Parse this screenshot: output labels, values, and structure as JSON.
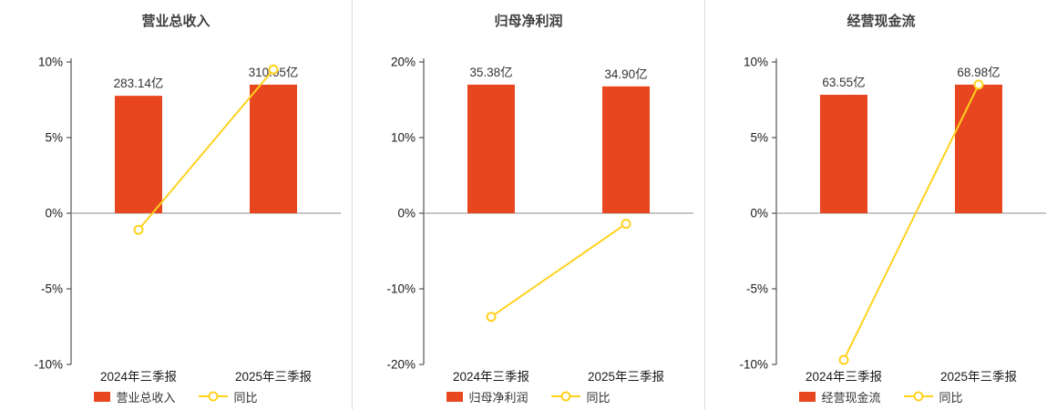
{
  "page": {
    "background": "#ffffff",
    "divider_color": "#dddddd"
  },
  "chart_data": [
    {
      "type": "bar",
      "combo": "bar+line",
      "title": "营业总收入",
      "categories": [
        "2024年三季报",
        "2025年三季报"
      ],
      "bar_series": {
        "name": "营业总收入",
        "unit": "亿",
        "values": [
          283.14,
          310.05
        ],
        "labels": [
          "283.14亿",
          "310.05亿"
        ]
      },
      "line_series": {
        "name": "同比",
        "unit": "%",
        "values": [
          -1.1,
          9.5
        ]
      },
      "y_axis": {
        "min": -10,
        "max": 10,
        "tick_values": [
          10,
          5,
          0,
          -5,
          -10
        ],
        "tick_labels": [
          "10%",
          "5%",
          "0%",
          "-5%",
          "-10%"
        ]
      },
      "layout": {
        "grid": "off",
        "legend_position": "bottom-center"
      },
      "colors": {
        "bar": "#e8461f",
        "line": "#ffd21e"
      }
    },
    {
      "type": "bar",
      "combo": "bar+line",
      "title": "归母净利润",
      "categories": [
        "2024年三季报",
        "2025年三季报"
      ],
      "bar_series": {
        "name": "归母净利润",
        "unit": "亿",
        "values": [
          35.38,
          34.9
        ],
        "labels": [
          "35.38亿",
          "34.90亿"
        ]
      },
      "line_series": {
        "name": "同比",
        "unit": "%",
        "values": [
          -13.7,
          -1.4
        ]
      },
      "y_axis": {
        "min": -20,
        "max": 20,
        "tick_values": [
          20,
          10,
          0,
          -10,
          -20
        ],
        "tick_labels": [
          "20%",
          "10%",
          "0%",
          "-10%",
          "-20%"
        ]
      },
      "layout": {
        "grid": "off",
        "legend_position": "bottom-center"
      },
      "colors": {
        "bar": "#e8461f",
        "line": "#ffd21e"
      }
    },
    {
      "type": "bar",
      "combo": "bar+line",
      "title": "经营现金流",
      "categories": [
        "2024年三季报",
        "2025年三季报"
      ],
      "bar_series": {
        "name": "经营现金流",
        "unit": "亿",
        "values": [
          63.55,
          68.98
        ],
        "labels": [
          "63.55亿",
          "68.98亿"
        ]
      },
      "line_series": {
        "name": "同比",
        "unit": "%",
        "values": [
          -9.7,
          8.5
        ]
      },
      "y_axis": {
        "min": -10,
        "max": 10,
        "tick_values": [
          10,
          5,
          0,
          -5,
          -10
        ],
        "tick_labels": [
          "10%",
          "5%",
          "0%",
          "-5%",
          "-10%"
        ]
      },
      "layout": {
        "grid": "off",
        "legend_position": "bottom-center"
      },
      "colors": {
        "bar": "#e8461f",
        "line": "#ffd21e"
      }
    }
  ]
}
